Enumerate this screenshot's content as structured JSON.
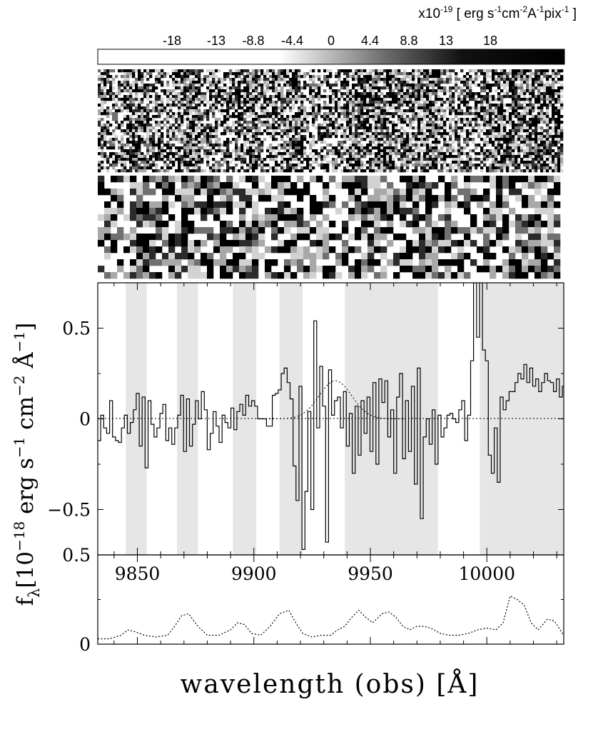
{
  "colorbar": {
    "unit_label": "x10-19 [ erg s-1cm-2A-1pix-1 ]",
    "unit_prefix": "x10",
    "unit_exp": "-19",
    "unit_rest": " [ erg s",
    "unit_e1": "-1",
    "unit_cm": "cm",
    "unit_e2": "-2",
    "unit_a": "A",
    "unit_e3": "-1",
    "unit_pix": "pix",
    "unit_e4": "-1",
    "unit_close": " ]",
    "range": [
      -26.4,
      26.4
    ],
    "ticks": [
      {
        "value": -18,
        "label": "-18"
      },
      {
        "value": -13,
        "label": "-13"
      },
      {
        "value": -8.8,
        "label": "-8.8"
      },
      {
        "value": -4.4,
        "label": "-4.4"
      },
      {
        "value": 0,
        "label": "0"
      },
      {
        "value": 4.4,
        "label": "4.4"
      },
      {
        "value": 8.8,
        "label": "8.8"
      },
      {
        "value": 13,
        "label": "13"
      },
      {
        "value": 18,
        "label": "18"
      }
    ]
  },
  "chart_data": [
    {
      "type": "heatmap",
      "panel": "2D spectrum (unsmoothed)"
    },
    {
      "type": "heatmap",
      "panel": "2D spectrum (smoothed)"
    },
    {
      "type": "line",
      "panel": "1D flux spectrum",
      "xlim": [
        9833,
        10033
      ],
      "ylim": [
        -0.75,
        0.75
      ],
      "y_ticks": [
        {
          "value": 0.5,
          "label": "0.5"
        },
        {
          "value": 0,
          "label": "0"
        },
        {
          "value": -0.5,
          "label": "−0.5"
        }
      ],
      "shaded_regions": [
        [
          9845,
          9854
        ],
        [
          9867,
          9876
        ],
        [
          9891,
          9901
        ],
        [
          9911,
          9921
        ],
        [
          9939,
          9979
        ],
        [
          9997,
          10033
        ]
      ],
      "zero_line": true,
      "model_profile": {
        "center": 9935,
        "amplitude": 0.21,
        "sigma": 7
      },
      "series": [
        {
          "step_start": 9833,
          "step_width": 1.27,
          "values": [
            -0.12,
            0.02,
            -0.05,
            -0.08,
            0.1,
            -0.1,
            -0.12,
            -0.13,
            -0.05,
            0.02,
            -0.08,
            -0.02,
            0.05,
            0.14,
            -0.15,
            0.12,
            -0.27,
            0.1,
            -0.03,
            -0.1,
            -0.05,
            0.03,
            0.08,
            -0.12,
            -0.05,
            -0.14,
            -0.05,
            0.02,
            0.13,
            -0.18,
            0.11,
            -0.15,
            -0.03,
            0.1,
            0.0,
            0.15,
            0.05,
            -0.17,
            -0.08,
            0.04,
            -0.04,
            -0.13,
            0.02,
            -0.02,
            -0.05,
            0.06,
            -0.06,
            0.04,
            0.08,
            0.02,
            0.13,
            0.07,
            0.1,
            0.07,
            0.0,
            0.0,
            0.0,
            -0.04,
            -0.04,
            0.13,
            0.14,
            0.16,
            0.25,
            0.28,
            0.2,
            0.11,
            -0.26,
            -0.45,
            0.18,
            -0.72,
            -0.4,
            0.04,
            -0.5,
            0.54,
            -0.05,
            0.29,
            0.07,
            -0.68,
            0.27,
            0.02,
            0.1,
            0.12,
            -0.05,
            0.15,
            -0.15,
            0.03,
            -0.3,
            0.07,
            -0.2,
            0.1,
            -0.08,
            0.12,
            -0.18,
            0.2,
            -0.25,
            0.22,
            0.09,
            0.21,
            -0.1,
            0.05,
            -0.3,
            0.12,
            0.25,
            -0.22,
            0.1,
            -0.18,
            0.18,
            -0.36,
            0.28,
            -0.55,
            -0.1,
            0.0,
            -0.14,
            0.05,
            -0.25,
            0.02,
            -0.1,
            -0.05,
            0.02,
            0.03,
            0.0,
            -0.02,
            0.05,
            0.1,
            -0.12,
            0.02,
            0.32,
            0.75,
            0.45,
            0.75,
            0.38,
            0.32,
            -0.2,
            -0.3,
            -0.05,
            -0.35,
            0.12,
            0.05,
            0.1,
            0.15,
            0.15,
            0.2,
            0.25,
            0.22,
            0.3,
            0.2,
            0.28,
            0.18,
            0.22,
            0.15,
            0.2,
            0.25,
            0.21,
            0.2,
            0.15,
            0.22,
            0.12,
            0.18,
            -0.35,
            0.5,
            -0.05,
            0.3,
            0.05,
            -0.02,
            0.15,
            -0.4,
            0.18,
            -0.25,
            0.22,
            -0.35,
            0.7,
            -0.12,
            0.3,
            0.05,
            -0.3,
            0.1,
            -0.05,
            -0.15,
            0.2,
            -0.2,
            0.12,
            -0.25,
            0.1,
            -0.38,
            0.15,
            -0.3,
            0.2,
            -0.5,
            0.38,
            -0.55,
            0.15,
            0.3,
            0.6,
            0.75,
            -0.75,
            -0.2,
            -0.7,
            0.2,
            0.1,
            0.15,
            0.05,
            0.25,
            0.2,
            0.28,
            0.15,
            -0.4,
            0.1,
            -0.75,
            -0.25,
            0.0,
            0.05,
            -0.15,
            0.1,
            -0.08,
            0.03,
            -0.12,
            -0.06,
            0.05,
            -0.14,
            0.08,
            -0.02,
            0.15,
            -0.05,
            0.08,
            -0.1,
            0.1,
            -0.05,
            0.12,
            -0.15,
            -0.02,
            0.02,
            0.22,
            -0.18,
            -0.05,
            0.15,
            -0.3,
            0.25,
            -0.25,
            -0.1,
            0.1,
            0.4,
            -0.2,
            0.05,
            -0.35,
            0.35,
            -0.25,
            0.3,
            -0.15,
            0.25,
            -0.4,
            -0.55,
            -0.75,
            0.2,
            -0.3,
            -0.15,
            -0.6,
            0.05,
            -0.35,
            0.05,
            -0.75,
            -0.3,
            0.1,
            -0.1,
            0.05,
            -0.15,
            0.3,
            0.0,
            0.38,
            -0.12,
            -0.55,
            0.0,
            0.02,
            -0.03,
            0.2
          ]
        }
      ]
    },
    {
      "type": "line",
      "panel": "noise spectrum",
      "xlim": [
        9833,
        10033
      ],
      "ylim": [
        0,
        0.5
      ],
      "x_ticks": [
        {
          "value": 9850,
          "label": "9850"
        },
        {
          "value": 9900,
          "label": "9900"
        },
        {
          "value": 9950,
          "label": "9950"
        },
        {
          "value": 10000,
          "label": "10000"
        }
      ],
      "y_ticks": [
        {
          "value": 0.5,
          "label": "0.5"
        },
        {
          "value": 0,
          "label": "0"
        }
      ],
      "series": [
        {
          "line_style": "dotted",
          "x": [
            9833,
            9838,
            9843,
            9846,
            9849,
            9853,
            9858,
            9863,
            9866,
            9869,
            9872,
            9876,
            9880,
            9885,
            9890,
            9893,
            9896,
            9899,
            9903,
            9907,
            9911,
            9915,
            9918,
            9921,
            9925,
            9929,
            9933,
            9936,
            9939,
            9942,
            9945,
            9948,
            9951,
            9955,
            9958,
            9961,
            9964,
            9967,
            9970,
            9973,
            9976,
            9980,
            9984,
            9988,
            9992,
            9996,
            10000,
            10004,
            10007,
            10010,
            10013,
            10016,
            10019,
            10022,
            10026,
            10029,
            10033
          ],
          "y": [
            0.03,
            0.03,
            0.05,
            0.08,
            0.07,
            0.05,
            0.04,
            0.05,
            0.1,
            0.16,
            0.17,
            0.1,
            0.05,
            0.05,
            0.08,
            0.12,
            0.11,
            0.06,
            0.05,
            0.1,
            0.17,
            0.19,
            0.12,
            0.06,
            0.04,
            0.05,
            0.05,
            0.08,
            0.1,
            0.15,
            0.19,
            0.15,
            0.12,
            0.17,
            0.18,
            0.15,
            0.1,
            0.08,
            0.1,
            0.1,
            0.09,
            0.06,
            0.05,
            0.05,
            0.06,
            0.08,
            0.09,
            0.08,
            0.12,
            0.27,
            0.25,
            0.22,
            0.12,
            0.08,
            0.14,
            0.13,
            0.05
          ]
        }
      ]
    }
  ],
  "ylabel": {
    "f": "f",
    "lambda": "λ",
    "bracket_open": "[",
    "ten": "10",
    "exp": "−18",
    "units": " erg s",
    "e1": "−1",
    "cm": " cm",
    "e2": "−2",
    "angstrom": " Å",
    "e3": "−1",
    "bracket_close": "]"
  },
  "xlabel": "wavelength (obs) [Å]"
}
